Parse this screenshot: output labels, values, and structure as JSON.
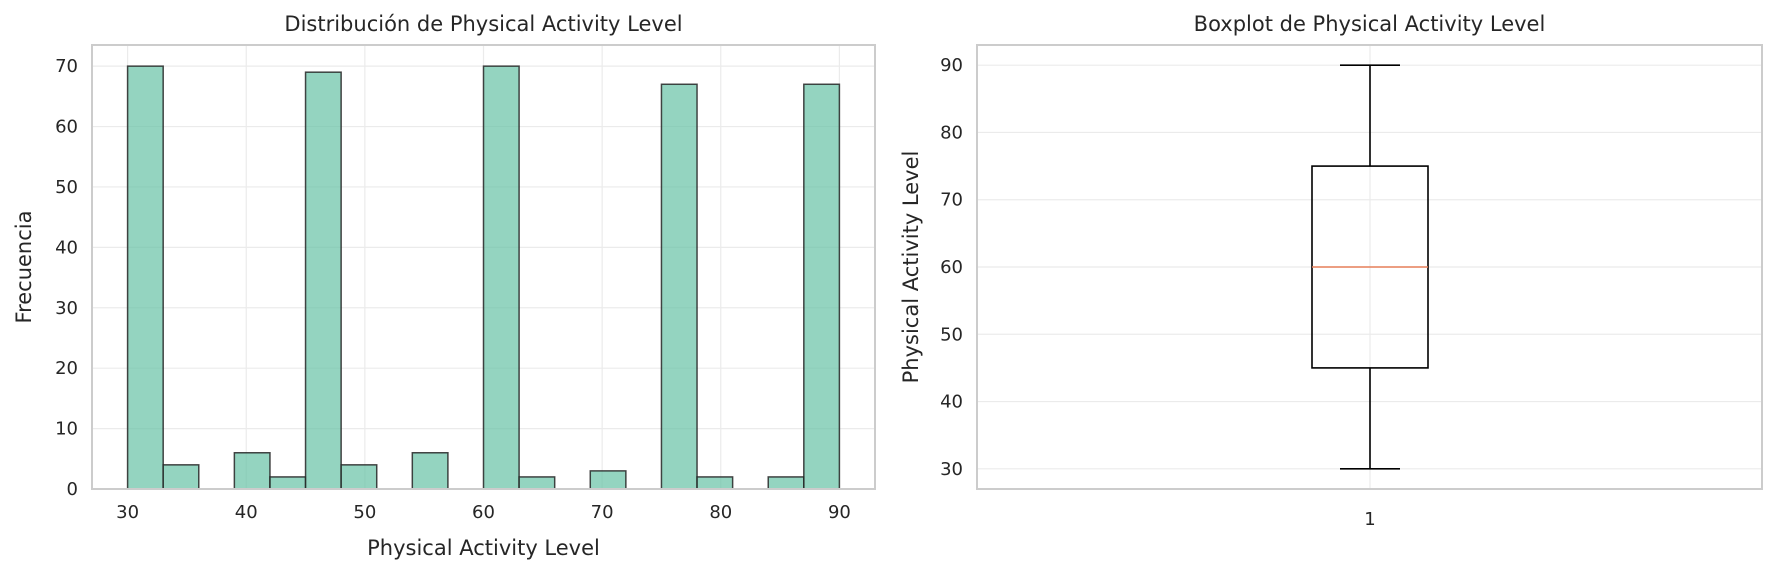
{
  "chart_data": [
    {
      "type": "bar",
      "title": "Distribución de Physical Activity Level",
      "xlabel": "Physical Activity Level",
      "ylabel": "Frecuencia",
      "xlim": [
        27,
        93
      ],
      "ylim": [
        0,
        73.5
      ],
      "xticks": [
        30,
        40,
        50,
        60,
        70,
        80,
        90
      ],
      "yticks": [
        0,
        10,
        20,
        30,
        40,
        50,
        60,
        70
      ],
      "bin_edges": [
        30,
        33,
        36,
        39,
        42,
        45,
        48,
        51,
        54,
        57,
        60,
        63,
        66,
        69,
        72,
        75,
        78,
        81,
        84,
        87,
        90
      ],
      "values": [
        70,
        4,
        0,
        6,
        2,
        69,
        4,
        0,
        6,
        0,
        70,
        2,
        0,
        3,
        0,
        67,
        2,
        0,
        2,
        67
      ],
      "bar_color": "#66c2a5",
      "grid": true
    },
    {
      "type": "box",
      "title": "Boxplot de Physical Activity Level",
      "xlabel": "",
      "ylabel": "Physical Activity Level",
      "ylim": [
        27,
        93
      ],
      "yticks": [
        30,
        40,
        50,
        60,
        70,
        80,
        90
      ],
      "xticks": [
        "1"
      ],
      "stats": {
        "whisker_low": 30,
        "q1": 45,
        "median": 60,
        "q3": 75,
        "whisker_high": 90
      },
      "median_color": "#e8805a",
      "grid": true
    }
  ]
}
